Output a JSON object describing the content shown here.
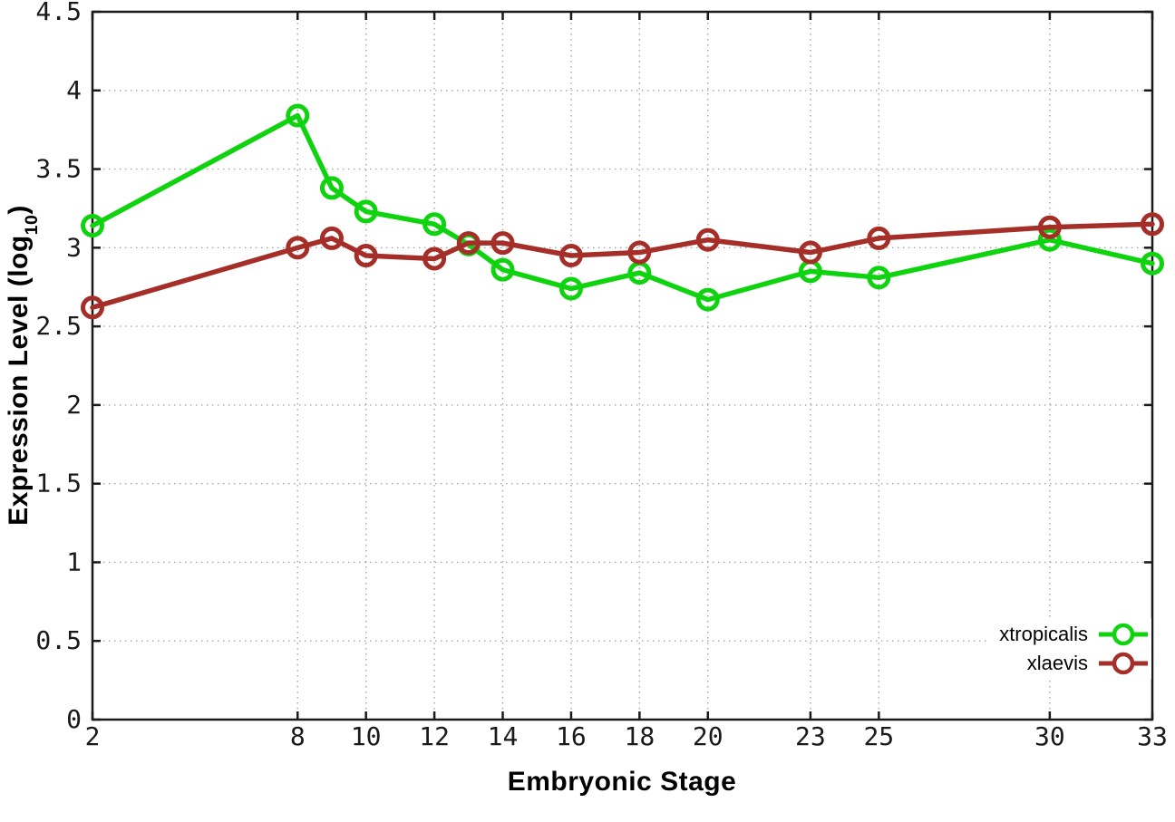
{
  "chart_data": {
    "type": "line",
    "title": "",
    "xlabel": "Embryonic Stage",
    "ylabel": "Expression Level (log10)",
    "ylabel_parts": {
      "main": "Expression Level (log",
      "sub": "10",
      "end": ")"
    },
    "x": [
      2,
      8,
      9,
      10,
      12,
      13,
      14,
      16,
      18,
      20,
      23,
      25,
      30,
      33
    ],
    "series": [
      {
        "name": "xtropicalis",
        "color": "#0fd30f",
        "values": [
          3.14,
          3.84,
          3.38,
          3.23,
          3.15,
          3.02,
          2.86,
          2.74,
          2.84,
          2.67,
          2.85,
          2.81,
          3.05,
          2.9
        ]
      },
      {
        "name": "xlaevis",
        "color": "#a52f28",
        "values": [
          2.62,
          3.0,
          3.06,
          2.95,
          2.93,
          3.03,
          3.03,
          2.95,
          2.97,
          3.05,
          2.97,
          3.06,
          3.13,
          3.15
        ]
      }
    ],
    "xlim": [
      2,
      33
    ],
    "ylim": [
      0,
      4.5
    ],
    "xticks": {
      "values": [
        2,
        8,
        10,
        12,
        14,
        16,
        18,
        20,
        23,
        25,
        30,
        33
      ],
      "labels": [
        "2",
        "8",
        "10",
        "12",
        "14",
        "16",
        "18",
        "20",
        "23",
        "25",
        "30",
        "33"
      ]
    },
    "yticks": {
      "values": [
        0,
        0.5,
        1,
        1.5,
        2,
        2.5,
        3,
        3.5,
        4,
        4.5
      ],
      "labels": [
        "0",
        "0.5",
        "1",
        "1.5",
        "2",
        "2.5",
        "3",
        "3.5",
        "4",
        "4.5"
      ]
    },
    "grid": true,
    "grid_style": "dotted",
    "marker": "open-circle",
    "legend_position": "inside-right-bottom",
    "colors": {
      "axis": "#1a1a1a",
      "grid": "#a6a6a6",
      "background": "#ffffff"
    }
  }
}
